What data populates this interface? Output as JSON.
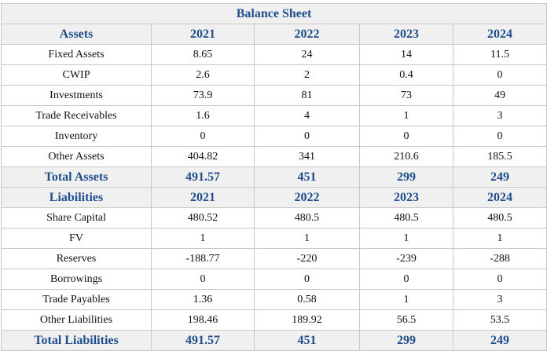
{
  "title": "Balance Sheet",
  "assets": {
    "header": [
      "Assets",
      "2021",
      "2022",
      "2023",
      "2024"
    ],
    "rows": [
      [
        "Fixed Assets",
        "8.65",
        "24",
        "14",
        "11.5"
      ],
      [
        "CWIP",
        "2.6",
        "2",
        "0.4",
        "0"
      ],
      [
        "Investments",
        "73.9",
        "81",
        "73",
        "49"
      ],
      [
        "Trade Receivables",
        "1.6",
        "4",
        "1",
        "3"
      ],
      [
        "Inventory",
        "0",
        "0",
        "0",
        "0"
      ],
      [
        "Other Assets",
        "404.82",
        "341",
        "210.6",
        "185.5"
      ]
    ],
    "total": [
      "Total Assets",
      "491.57",
      "451",
      "299",
      "249"
    ]
  },
  "liabilities": {
    "header": [
      "Liabilities",
      "2021",
      "2022",
      "2023",
      "2024"
    ],
    "rows": [
      [
        "Share Capital",
        "480.52",
        "480.5",
        "480.5",
        "480.5"
      ],
      [
        "FV",
        "1",
        "1",
        "1",
        "1"
      ],
      [
        "Reserves",
        "-188.77",
        "-220",
        "-239",
        "-288"
      ],
      [
        "Borrowings",
        "0",
        "0",
        "0",
        "0"
      ],
      [
        "Trade Payables",
        "1.36",
        "0.58",
        "1",
        "3"
      ],
      [
        "Other Liabilities",
        "198.46",
        "189.92",
        "56.5",
        "53.5"
      ]
    ],
    "total": [
      "Total Liabilities",
      "491.57",
      "451",
      "299",
      "249"
    ]
  }
}
